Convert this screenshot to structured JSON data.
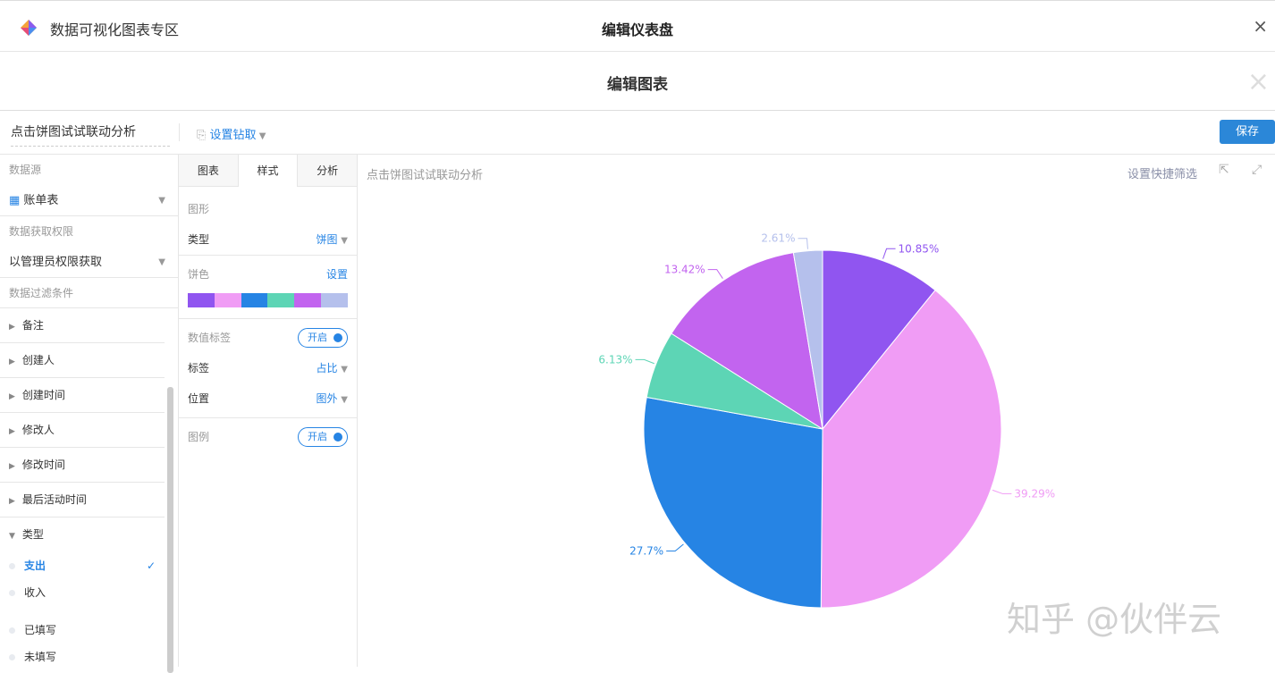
{
  "topbar": {
    "app_title": "数据可视化图表专区",
    "dashboard_title": "编辑仪表盘",
    "close": "×"
  },
  "modal": {
    "title": "编辑图表",
    "close": "×"
  },
  "toolbar": {
    "chart_name": "点击饼图试试联动分析",
    "drill_label": "设置钻取",
    "save_label": "保存"
  },
  "left": {
    "datasource_label": "数据源",
    "datasource_value": "账单表",
    "permission_label": "数据获取权限",
    "permission_value": "以管理员权限获取",
    "filter_label": "数据过滤条件",
    "fields": [
      "备注",
      "创建人",
      "创建时间",
      "修改人",
      "修改时间",
      "最后活动时间"
    ],
    "type_field": "类型",
    "options": [
      {
        "label": "支出",
        "selected": true
      },
      {
        "label": "收入",
        "selected": false
      },
      {
        "label": "已填写",
        "selected": false
      },
      {
        "label": "未填写",
        "selected": false
      }
    ]
  },
  "style_panel": {
    "tabs": [
      "图表",
      "样式",
      "分析"
    ],
    "active_tab": "样式",
    "shape_label": "图形",
    "type_label": "类型",
    "type_value": "饼图",
    "color_label": "饼色",
    "color_set": "设置",
    "palette": [
      "#9055f0",
      "#f09cf5",
      "#2684e4",
      "#5dd5b5",
      "#c264ef",
      "#b5c0ec"
    ],
    "value_label": "数值标签",
    "value_toggle": "开启",
    "label_label": "标签",
    "label_value": "占比",
    "position_label": "位置",
    "position_value": "图外",
    "legend_label": "图例",
    "legend_toggle": "开启"
  },
  "chart": {
    "title": "点击饼图试试联动分析",
    "quick_filter": "设置快捷筛选"
  },
  "chart_data": {
    "type": "pie",
    "values": [
      10.85,
      39.29,
      27.7,
      6.13,
      13.42,
      2.61
    ],
    "labels": [
      "10.85%",
      "39.29%",
      "27.7%",
      "6.13%",
      "13.42%",
      "2.61%"
    ],
    "colors": [
      "#9055f0",
      "#f09cf5",
      "#2684e4",
      "#5dd5b5",
      "#c264ef",
      "#b5c0ec"
    ],
    "start_angle": "top",
    "direction": "clockwise"
  },
  "watermark": "知乎 @伙伴云"
}
